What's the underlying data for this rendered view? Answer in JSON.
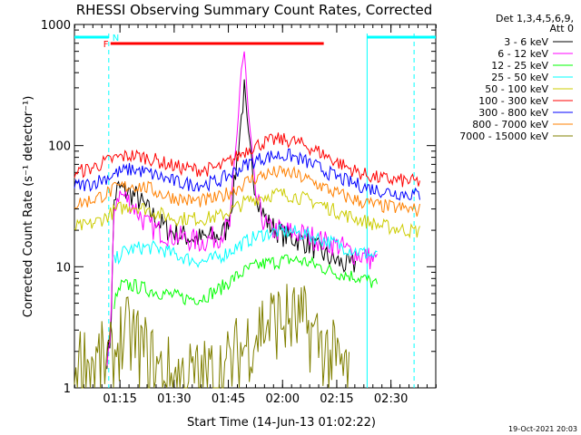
{
  "chart_data": {
    "type": "line",
    "title": "RHESSI Observing Summary Count Rates, Corrected",
    "xlabel": "Start Time (14-Jun-13 01:02:22)",
    "ylabel": "Corrected Count Rate (s⁻¹ detector⁻¹)",
    "yscale": "log",
    "ylim": [
      1,
      1000
    ],
    "xlim_minutes": [
      0,
      100
    ],
    "x_ticks": [
      {
        "t": 12.6,
        "label": "01:15"
      },
      {
        "t": 27.6,
        "label": "01:30"
      },
      {
        "t": 42.6,
        "label": "01:45"
      },
      {
        "t": 57.6,
        "label": "02:00"
      },
      {
        "t": 72.6,
        "label": "02:15"
      },
      {
        "t": 87.6,
        "label": "02:30"
      }
    ],
    "y_ticks": [
      {
        "v": 1,
        "label": "1"
      },
      {
        "v": 10,
        "label": "10"
      },
      {
        "v": 100,
        "label": "100"
      },
      {
        "v": 1000,
        "label": "1000"
      }
    ],
    "legend_header": [
      "Det 1,3,4,5,6,9,",
      "Att 0"
    ],
    "legend_position": "right",
    "timestamp": "19-Oct-2021 20:03",
    "series": [
      {
        "name": "3 - 6 keV",
        "color": "#000000",
        "points": [
          [
            9,
            1.8
          ],
          [
            10,
            2.5
          ],
          [
            11,
            35
          ],
          [
            12,
            45
          ],
          [
            14,
            42
          ],
          [
            17,
            38
          ],
          [
            20,
            30
          ],
          [
            23,
            24
          ],
          [
            26,
            20
          ],
          [
            30,
            18
          ],
          [
            35,
            17
          ],
          [
            40,
            18
          ],
          [
            42,
            20
          ],
          [
            44,
            40
          ],
          [
            46,
            150
          ],
          [
            47,
            290
          ],
          [
            48,
            120
          ],
          [
            50,
            45
          ],
          [
            52,
            28
          ],
          [
            54,
            22
          ],
          [
            56,
            20
          ],
          [
            58,
            18
          ],
          [
            61,
            17
          ],
          [
            64,
            16
          ],
          [
            67,
            14
          ],
          [
            70,
            12
          ],
          [
            73,
            11
          ],
          [
            76,
            10
          ],
          [
            78,
            10.5
          ]
        ]
      },
      {
        "name": "6 - 12 keV",
        "color": "#ff00ff",
        "points": [
          [
            9,
            1.8
          ],
          [
            10,
            2.5
          ],
          [
            11,
            30
          ],
          [
            12,
            40
          ],
          [
            14,
            38
          ],
          [
            17,
            30
          ],
          [
            20,
            22
          ],
          [
            23,
            20
          ],
          [
            27,
            18
          ],
          [
            31,
            17
          ],
          [
            35,
            16
          ],
          [
            40,
            18
          ],
          [
            43,
            22
          ],
          [
            45,
            120
          ],
          [
            46,
            400
          ],
          [
            47,
            580
          ],
          [
            48,
            200
          ],
          [
            50,
            40
          ],
          [
            52,
            25
          ],
          [
            54,
            20
          ],
          [
            57,
            20
          ],
          [
            61,
            19
          ],
          [
            65,
            18
          ],
          [
            69,
            16
          ],
          [
            73,
            15
          ],
          [
            77,
            13
          ],
          [
            81,
            12
          ],
          [
            84,
            11
          ]
        ]
      },
      {
        "name": "12 - 25 keV",
        "color": "#00ff00",
        "points": [
          [
            11,
            5
          ],
          [
            13,
            7
          ],
          [
            16,
            7
          ],
          [
            20,
            6.5
          ],
          [
            25,
            6
          ],
          [
            30,
            5.5
          ],
          [
            35,
            5.5
          ],
          [
            40,
            6.5
          ],
          [
            44,
            8
          ],
          [
            48,
            9.5
          ],
          [
            52,
            10.5
          ],
          [
            56,
            11
          ],
          [
            60,
            11.5
          ],
          [
            64,
            11
          ],
          [
            68,
            10
          ],
          [
            72,
            9
          ],
          [
            76,
            8.5
          ],
          [
            80,
            8
          ],
          [
            84,
            7
          ]
        ]
      },
      {
        "name": "25 - 50 keV",
        "color": "#00ffff",
        "points": [
          [
            11,
            11
          ],
          [
            13,
            13
          ],
          [
            16,
            14
          ],
          [
            20,
            14.5
          ],
          [
            24,
            14
          ],
          [
            28,
            12.5
          ],
          [
            32,
            11.5
          ],
          [
            36,
            11
          ],
          [
            40,
            12
          ],
          [
            44,
            14
          ],
          [
            48,
            16.5
          ],
          [
            52,
            18.5
          ],
          [
            56,
            19.5
          ],
          [
            60,
            19.5
          ],
          [
            64,
            18.5
          ],
          [
            68,
            17
          ],
          [
            72,
            15.5
          ],
          [
            76,
            14
          ],
          [
            80,
            13
          ],
          [
            84,
            12
          ]
        ]
      },
      {
        "name": "50 - 100 keV",
        "color": "#cccc00",
        "points": [
          [
            0,
            21
          ],
          [
            4,
            22
          ],
          [
            8,
            25
          ],
          [
            12,
            30
          ],
          [
            16,
            32
          ],
          [
            20,
            30
          ],
          [
            24,
            27
          ],
          [
            28,
            25
          ],
          [
            32,
            25
          ],
          [
            36,
            25
          ],
          [
            40,
            26
          ],
          [
            44,
            30
          ],
          [
            48,
            35
          ],
          [
            52,
            38
          ],
          [
            56,
            40
          ],
          [
            60,
            39
          ],
          [
            64,
            36
          ],
          [
            68,
            33
          ],
          [
            72,
            29
          ],
          [
            76,
            26
          ],
          [
            80,
            24
          ],
          [
            84,
            22
          ],
          [
            88,
            21
          ],
          [
            92,
            20
          ],
          [
            96,
            19.5
          ]
        ]
      },
      {
        "name": "100 - 300 keV",
        "color": "#ff0000",
        "points": [
          [
            0,
            60
          ],
          [
            4,
            64
          ],
          [
            8,
            72
          ],
          [
            12,
            80
          ],
          [
            16,
            83
          ],
          [
            20,
            80
          ],
          [
            24,
            73
          ],
          [
            28,
            67
          ],
          [
            32,
            64
          ],
          [
            36,
            63
          ],
          [
            40,
            66
          ],
          [
            44,
            77
          ],
          [
            48,
            94
          ],
          [
            52,
            105
          ],
          [
            56,
            112
          ],
          [
            60,
            110
          ],
          [
            64,
            100
          ],
          [
            68,
            88
          ],
          [
            72,
            75
          ],
          [
            76,
            65
          ],
          [
            80,
            58
          ],
          [
            84,
            54
          ],
          [
            88,
            52
          ],
          [
            92,
            51
          ],
          [
            96,
            50
          ]
        ]
      },
      {
        "name": "300 - 800 keV",
        "color": "#0000ff",
        "points": [
          [
            0,
            46
          ],
          [
            4,
            48
          ],
          [
            8,
            53
          ],
          [
            12,
            60
          ],
          [
            16,
            64
          ],
          [
            20,
            60
          ],
          [
            24,
            55
          ],
          [
            28,
            50
          ],
          [
            32,
            48
          ],
          [
            36,
            48
          ],
          [
            40,
            51
          ],
          [
            44,
            60
          ],
          [
            48,
            71
          ],
          [
            52,
            79
          ],
          [
            56,
            83
          ],
          [
            60,
            82
          ],
          [
            64,
            74
          ],
          [
            68,
            65
          ],
          [
            72,
            56
          ],
          [
            76,
            50
          ],
          [
            80,
            46
          ],
          [
            84,
            43
          ],
          [
            88,
            41
          ],
          [
            92,
            40
          ],
          [
            96,
            39
          ]
        ]
      },
      {
        "name": "800 - 7000 keV",
        "color": "#ff8000",
        "points": [
          [
            0,
            33
          ],
          [
            4,
            35
          ],
          [
            8,
            39
          ],
          [
            12,
            45
          ],
          [
            16,
            47
          ],
          [
            20,
            45
          ],
          [
            24,
            40
          ],
          [
            28,
            37
          ],
          [
            32,
            35
          ],
          [
            36,
            35
          ],
          [
            40,
            37
          ],
          [
            44,
            43
          ],
          [
            48,
            51
          ],
          [
            52,
            57
          ],
          [
            56,
            60
          ],
          [
            60,
            59
          ],
          [
            64,
            53
          ],
          [
            68,
            47
          ],
          [
            72,
            41
          ],
          [
            76,
            37
          ],
          [
            80,
            34
          ],
          [
            84,
            32
          ],
          [
            88,
            31
          ],
          [
            92,
            30
          ],
          [
            96,
            29
          ]
        ]
      },
      {
        "name": "7000 - 15000 keV",
        "color": "#808000",
        "points": [
          [
            0,
            1.6
          ],
          [
            11,
            1.6
          ],
          [
            12,
            2.5
          ],
          [
            16,
            2.6
          ],
          [
            20,
            1.8
          ],
          [
            24,
            1.3
          ],
          [
            28,
            1.2
          ],
          [
            36,
            1.2
          ],
          [
            42,
            1.4
          ],
          [
            48,
            2.4
          ],
          [
            52,
            3.3
          ],
          [
            56,
            3.6
          ],
          [
            60,
            3.6
          ],
          [
            64,
            3.2
          ],
          [
            68,
            2.4
          ],
          [
            72,
            1.6
          ],
          [
            76,
            1.3
          ]
        ]
      }
    ],
    "flag_bars": [
      {
        "label": "N",
        "color": "#00ffff",
        "segments": [
          [
            0,
            9.5
          ],
          [
            81,
            100
          ]
        ]
      },
      {
        "label": "F",
        "color": "#ff0000",
        "segments": [
          [
            10,
            69
          ]
        ]
      }
    ],
    "vertical_markers": [
      {
        "color": "#00ffff",
        "t": 9.5,
        "style": "dashed"
      },
      {
        "color": "#00ffff",
        "t": 81,
        "style": "solid"
      },
      {
        "color": "#00ffff",
        "t": 94,
        "style": "dashed"
      }
    ]
  }
}
